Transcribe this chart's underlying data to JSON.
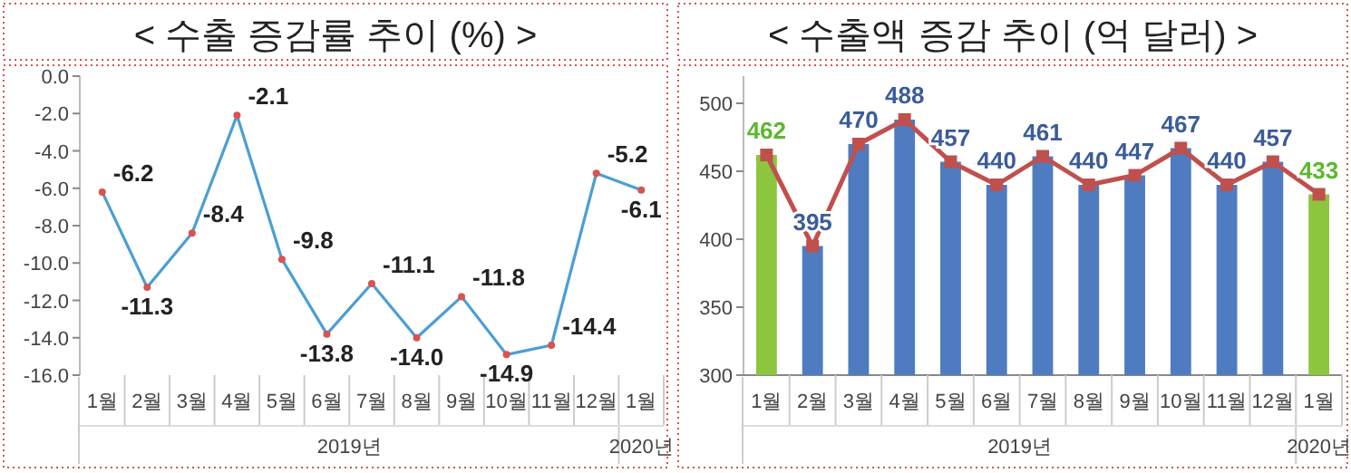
{
  "chart_data": [
    {
      "type": "line",
      "title": "< 수출 증감률 추이 (%) >",
      "categories": [
        "1월",
        "2월",
        "3월",
        "4월",
        "5월",
        "6월",
        "7월",
        "8월",
        "9월",
        "10월",
        "11월",
        "12월",
        "1월"
      ],
      "series": [
        {
          "color": "#4a9fd4",
          "values": [
            -6.2,
            -11.3,
            -8.4,
            -2.1,
            -9.8,
            -13.8,
            -11.1,
            -14.0,
            -11.8,
            -14.9,
            -14.4,
            -5.2,
            -6.1
          ],
          "value_labels": [
            "-6.2",
            "-11.3",
            "-8.4",
            "-2.1",
            "-9.8",
            "-13.8",
            "-11.1",
            "-14.0",
            "-11.8",
            "-14.9",
            "-14.4",
            "-5.2",
            "-6.1"
          ]
        }
      ],
      "ylim": [
        -16,
        0
      ],
      "yticks": [
        {
          "value": 0,
          "label": "0.0"
        },
        {
          "value": -2,
          "label": "-2.0"
        },
        {
          "value": -4,
          "label": "-4.0"
        },
        {
          "value": -6,
          "label": "-6.0"
        },
        {
          "value": -8,
          "label": "-8.0"
        },
        {
          "value": -10,
          "label": "-10.0"
        },
        {
          "value": -12,
          "label": "-12.0"
        },
        {
          "value": -14,
          "label": "-14.0"
        },
        {
          "value": -16,
          "label": "-16.0"
        }
      ],
      "marker": "circle",
      "annotations": [
        "2019년",
        "2020년"
      ]
    },
    {
      "type": "bar",
      "title": "< 수출액 증감 추이 (억 달러) >",
      "categories": [
        "1월",
        "2월",
        "3월",
        "4월",
        "5월",
        "6월",
        "7월",
        "8월",
        "9월",
        "10월",
        "11월",
        "12월",
        "1월"
      ],
      "series": [
        {
          "type": "bar",
          "colors": [
            "#8cc63f",
            "#4f7cc0",
            "#4f7cc0",
            "#4f7cc0",
            "#4f7cc0",
            "#4f7cc0",
            "#4f7cc0",
            "#4f7cc0",
            "#4f7cc0",
            "#4f7cc0",
            "#4f7cc0",
            "#4f7cc0",
            "#8cc63f"
          ],
          "values": [
            462,
            395,
            470,
            488,
            457,
            440,
            461,
            440,
            447,
            467,
            440,
            457,
            433
          ],
          "value_labels": [
            "462",
            "395",
            "470",
            "488",
            "457",
            "440",
            "461",
            "440",
            "447",
            "467",
            "440",
            "457",
            "433"
          ]
        },
        {
          "type": "line",
          "color": "#c0504d",
          "values": [
            462,
            395,
            470,
            488,
            457,
            440,
            461,
            440,
            447,
            467,
            440,
            457,
            433
          ]
        }
      ],
      "ylim": [
        300,
        520
      ],
      "yticks": [
        300,
        350,
        400,
        450,
        500
      ],
      "marker": "square",
      "annotations": [
        "2019년",
        "2020년"
      ]
    }
  ]
}
